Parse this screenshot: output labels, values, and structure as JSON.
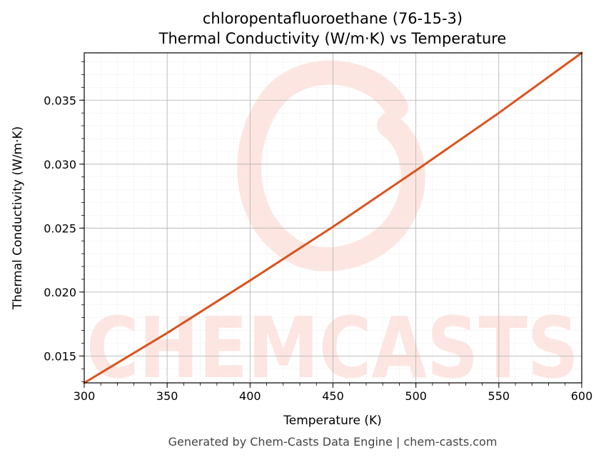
{
  "chart_data": {
    "type": "line",
    "title": "chloropentafluoroethane (76-15-3)",
    "subtitle": "Thermal Conductivity (W/m·K) vs Temperature",
    "xlabel": "Temperature (K)",
    "ylabel": "Thermal Conductivity (W/m·K)",
    "xlim": [
      300,
      600
    ],
    "ylim": [
      0.0129,
      0.0387
    ],
    "xticks": [
      300,
      350,
      400,
      450,
      500,
      550,
      600
    ],
    "xtick_labels": [
      "300",
      "350",
      "400",
      "450",
      "500",
      "550",
      "600"
    ],
    "yticks": [
      0.015,
      0.02,
      0.025,
      0.03,
      0.035
    ],
    "ytick_labels": [
      "0.015",
      "0.020",
      "0.025",
      "0.030",
      "0.035"
    ],
    "grid": true,
    "series": [
      {
        "color": "#d9531e",
        "x": [
          300,
          350,
          400,
          450,
          500,
          550,
          600
        ],
        "y": [
          0.0129,
          0.0168,
          0.0209,
          0.0251,
          0.0295,
          0.034,
          0.0387
        ]
      }
    ]
  },
  "watermark": {
    "text": "CHEMCASTS",
    "color": "#fde3de"
  },
  "footer": "Generated by Chem-Casts Data Engine | chem-casts.com"
}
